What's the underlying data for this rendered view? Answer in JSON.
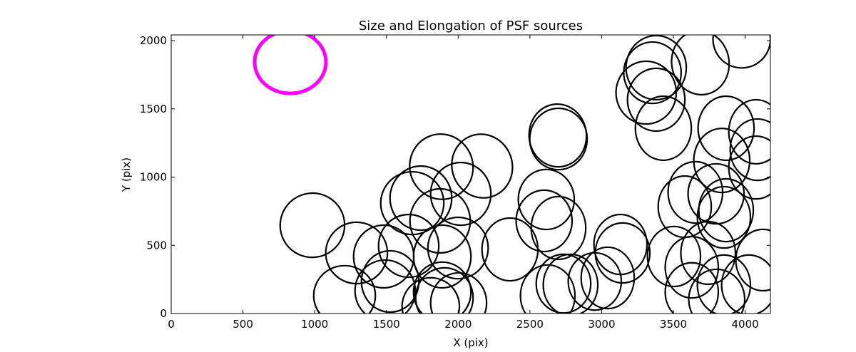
{
  "chart_data": {
    "type": "scatter",
    "title": "Size and Elongation of PSF sources",
    "xlabel": "X (pix)",
    "ylabel": "Y (pix)",
    "xlim": [
      0,
      4176
    ],
    "ylim": [
      0,
      2042
    ],
    "xticks": [
      0,
      500,
      1000,
      1500,
      2000,
      2500,
      3000,
      3500,
      4000
    ],
    "yticks": [
      0,
      500,
      1000,
      1500,
      2000
    ],
    "grid": false,
    "highlight": {
      "x": 830,
      "y": 1843,
      "w": 497,
      "h": 460,
      "angle": 0,
      "color": "#ff00ff"
    },
    "ellipse_color": "#000000",
    "ellipses": [
      [
        984,
        647,
        450,
        470,
        -35
      ],
      [
        1292,
        444,
        430,
        450,
        0
      ],
      [
        1208,
        131,
        430,
        440,
        0
      ],
      [
        1491,
        167,
        420,
        450,
        0
      ],
      [
        1481,
        418,
        420,
        460,
        0
      ],
      [
        1526,
        235,
        400,
        450,
        0
      ],
      [
        1655,
        496,
        420,
        460,
        0
      ],
      [
        1680,
        809,
        440,
        460,
        -10
      ],
      [
        1740,
        846,
        430,
        470,
        0
      ],
      [
        1883,
        1076,
        440,
        480,
        -20
      ],
      [
        2167,
        1081,
        420,
        470,
        -20
      ],
      [
        2018,
        877,
        420,
        460,
        0
      ],
      [
        1874,
        679,
        420,
        470,
        0
      ],
      [
        1889,
        418,
        400,
        460,
        0
      ],
      [
        1999,
        480,
        420,
        450,
        0
      ],
      [
        1889,
        157,
        400,
        440,
        0
      ],
      [
        1904,
        115,
        400,
        440,
        0
      ],
      [
        2003,
        78,
        390,
        440,
        0
      ],
      [
        1809,
        52,
        400,
        420,
        0
      ],
      [
        2361,
        470,
        390,
        460,
        0
      ],
      [
        2614,
        836,
        390,
        440,
        0
      ],
      [
        2599,
        679,
        390,
        450,
        0
      ],
      [
        2699,
        627,
        380,
        460,
        0
      ],
      [
        2694,
        1305,
        400,
        460,
        -5
      ],
      [
        2699,
        1279,
        400,
        450,
        0
      ],
      [
        2624,
        131,
        380,
        450,
        0
      ],
      [
        2734,
        219,
        380,
        430,
        0
      ],
      [
        2783,
        209,
        380,
        450,
        0
      ],
      [
        2952,
        235,
        370,
        420,
        0
      ],
      [
        3042,
        261,
        370,
        450,
        0
      ],
      [
        3131,
        506,
        370,
        440,
        0
      ],
      [
        3146,
        444,
        380,
        440,
        0
      ],
      [
        3310,
        1619,
        420,
        460,
        0
      ],
      [
        3354,
        1765,
        400,
        450,
        0
      ],
      [
        3380,
        1802,
        420,
        470,
        0
      ],
      [
        3380,
        1567,
        400,
        460,
        0
      ],
      [
        3430,
        1358,
        390,
        470,
        0
      ],
      [
        3688,
        1838,
        400,
        470,
        -10
      ],
      [
        3976,
        2010,
        400,
        420,
        0
      ],
      [
        3837,
        1122,
        390,
        470,
        0
      ],
      [
        3797,
        877,
        390,
        440,
        0
      ],
      [
        3579,
        783,
        370,
        450,
        0
      ],
      [
        3653,
        888,
        380,
        450,
        0
      ],
      [
        3504,
        418,
        370,
        440,
        0
      ],
      [
        3628,
        339,
        370,
        450,
        0
      ],
      [
        3742,
        444,
        380,
        460,
        0
      ],
      [
        3628,
        157,
        370,
        430,
        0
      ],
      [
        3802,
        104,
        390,
        440,
        0
      ],
      [
        3852,
        209,
        370,
        440,
        0
      ],
      [
        3867,
        1358,
        390,
        470,
        0
      ],
      [
        3867,
        757,
        380,
        460,
        0
      ],
      [
        3852,
        705,
        370,
        450,
        0
      ],
      [
        4076,
        1332,
        380,
        470,
        0
      ],
      [
        4076,
        1070,
        380,
        460,
        0
      ],
      [
        4086,
        1201,
        380,
        450,
        0
      ],
      [
        4125,
        392,
        380,
        450,
        0
      ],
      [
        4026,
        209,
        380,
        440,
        0
      ]
    ]
  }
}
